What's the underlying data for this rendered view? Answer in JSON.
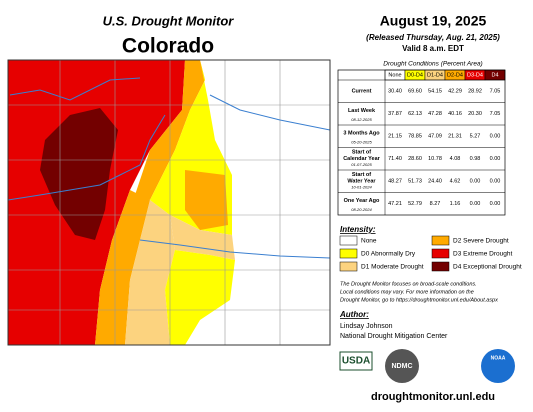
{
  "header": {
    "title": "U.S. Drought Monitor",
    "state": "Colorado",
    "date": "August 19, 2025",
    "released": "(Released Thursday, Aug. 21, 2025)",
    "valid": "Valid 8 a.m. EDT"
  },
  "table": {
    "caption": "Drought Conditions (Percent Area)",
    "columns": [
      "None",
      "D0-D4",
      "D1-D4",
      "D2-D4",
      "D3-D4",
      "D4"
    ],
    "rows": [
      {
        "label": "Current",
        "date": null,
        "values": [
          "30.40",
          "69.60",
          "54.15",
          "42.29",
          "28.92",
          "7.05"
        ]
      },
      {
        "label": "Last Week",
        "date": "08-12-2025",
        "values": [
          "37.87",
          "62.13",
          "47.28",
          "40.16",
          "20.30",
          "7.05"
        ]
      },
      {
        "label": "3 Months Ago",
        "date": "05-20-2025",
        "values": [
          "21.15",
          "78.85",
          "47.09",
          "21.31",
          "5.27",
          "0.00"
        ]
      },
      {
        "label": "Start of Calendar Year",
        "date": "01-07-2025",
        "values": [
          "71.40",
          "28.60",
          "10.78",
          "4.08",
          "0.98",
          "0.00"
        ]
      },
      {
        "label": "Start of Water Year",
        "date": "10-01-2024",
        "values": [
          "48.27",
          "51.73",
          "24.40",
          "4.62",
          "0.00",
          "0.00"
        ]
      },
      {
        "label": "One Year Ago",
        "date": "08-20-2024",
        "values": [
          "47.21",
          "52.79",
          "8.27",
          "1.16",
          "0.00",
          "0.00"
        ]
      }
    ]
  },
  "legend": {
    "title": "Intensity:",
    "items": [
      {
        "label": "None",
        "color": "#ffffff"
      },
      {
        "label": "D0 Abnormally Dry",
        "color": "#ffff00"
      },
      {
        "label": "D1 Moderate Drought",
        "color": "#fcd37f"
      },
      {
        "label": "D2 Severe Drought",
        "color": "#ffaa00"
      },
      {
        "label": "D3 Extreme Drought",
        "color": "#e60000"
      },
      {
        "label": "D4 Exceptional Drought",
        "color": "#730000"
      }
    ]
  },
  "note": [
    "The Drought Monitor focuses on broad-scale conditions.",
    "Local conditions may vary. For more information on the",
    "Drought Monitor, go to https://droughtmonitor.unl.edu/About.aspx"
  ],
  "author": {
    "heading": "Author:",
    "name": "Lindsay Johnson",
    "org": "National Drought Mitigation Center"
  },
  "logos": [
    "USDA",
    "NDMC",
    "NOAA"
  ],
  "footer": "droughtmonitor.unl.edu"
}
